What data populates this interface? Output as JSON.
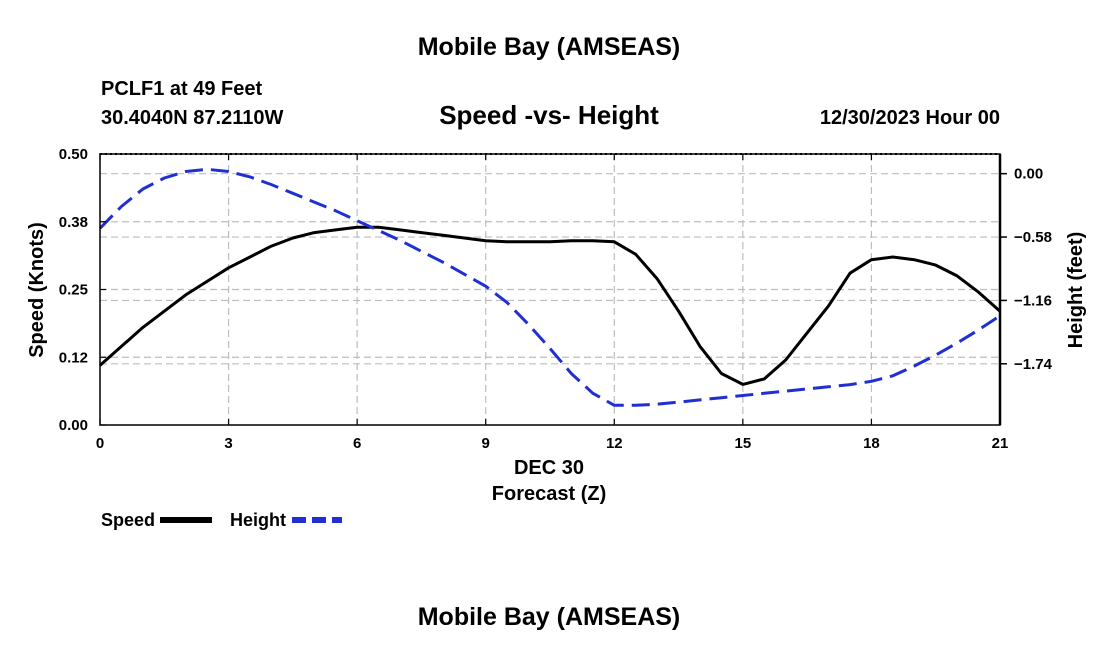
{
  "header": {
    "title": "Mobile Bay (AMSEAS)",
    "station": "PCLF1 at 49 Feet",
    "coords": "30.4040N  87.2110W",
    "datetime": "12/30/2023 Hour 00",
    "footer_title": "Mobile Bay (AMSEAS)"
  },
  "chart_data": {
    "type": "line",
    "title": "Speed -vs- Height",
    "xlabel": "Forecast (Z)",
    "xdate_label": "DEC 30",
    "ylabel": "Speed (Knots)",
    "y2label": "Height (feet)",
    "xlim": [
      0,
      21
    ],
    "ylim": [
      0,
      0.5
    ],
    "y2lim": [
      -2.3,
      0.18
    ],
    "xticks": [
      0,
      3,
      6,
      9,
      12,
      15,
      18,
      21
    ],
    "xtick_labels": [
      "0",
      "3",
      "6",
      "9",
      "12",
      "15",
      "18",
      "21"
    ],
    "yticks": [
      0,
      0.125,
      0.25,
      0.375,
      0.5
    ],
    "ytick_labels": [
      "0.00",
      "0.12",
      "0.25",
      "0.38",
      "0.50"
    ],
    "y2ticks": [
      0,
      -0.58,
      -1.16,
      -1.74
    ],
    "y2tick_labels": [
      "0.00",
      "−0.58",
      "−1.16",
      "−1.74"
    ],
    "grid": true,
    "series": [
      {
        "name": "Speed",
        "axis": "left",
        "color": "#000000",
        "style": "solid",
        "x": [
          0,
          0.5,
          1,
          1.5,
          2,
          2.5,
          3,
          3.5,
          4,
          4.5,
          5,
          5.5,
          6,
          6.5,
          7,
          7.5,
          8,
          8.5,
          9,
          9.5,
          10,
          10.5,
          11,
          11.5,
          12,
          12.5,
          13,
          13.5,
          14,
          14.5,
          15,
          15.5,
          16,
          16.5,
          17,
          17.5,
          18,
          18.5,
          19,
          19.5,
          20,
          20.5,
          21
        ],
        "values": [
          0.11,
          0.145,
          0.18,
          0.21,
          0.24,
          0.265,
          0.29,
          0.31,
          0.33,
          0.345,
          0.355,
          0.36,
          0.365,
          0.365,
          0.36,
          0.355,
          0.35,
          0.345,
          0.34,
          0.338,
          0.338,
          0.338,
          0.34,
          0.34,
          0.338,
          0.315,
          0.27,
          0.21,
          0.145,
          0.095,
          0.075,
          0.085,
          0.12,
          0.17,
          0.22,
          0.28,
          0.305,
          0.31,
          0.305,
          0.295,
          0.275,
          0.245,
          0.21
        ]
      },
      {
        "name": "Height",
        "axis": "right",
        "color": "#1f2fd2",
        "style": "dashed",
        "x": [
          0,
          0.5,
          1,
          1.5,
          2,
          2.5,
          3,
          3.5,
          4,
          4.5,
          5,
          5.5,
          6,
          6.5,
          7,
          7.5,
          8,
          8.5,
          9,
          9.5,
          10,
          10.5,
          11,
          11.5,
          12,
          12.5,
          13,
          13.5,
          14,
          14.5,
          15,
          15.5,
          16,
          16.5,
          17,
          17.5,
          18,
          18.5,
          19,
          19.5,
          20,
          20.5,
          21
        ],
        "values": [
          -0.5,
          -0.3,
          -0.14,
          -0.04,
          0.02,
          0.04,
          0.02,
          -0.03,
          -0.1,
          -0.18,
          -0.26,
          -0.34,
          -0.43,
          -0.52,
          -0.61,
          -0.71,
          -0.81,
          -0.92,
          -1.03,
          -1.18,
          -1.38,
          -1.6,
          -1.83,
          -2.01,
          -2.12,
          -2.12,
          -2.11,
          -2.09,
          -2.07,
          -2.05,
          -2.03,
          -2.01,
          -1.99,
          -1.97,
          -1.95,
          -1.93,
          -1.9,
          -1.85,
          -1.76,
          -1.66,
          -1.55,
          -1.43,
          -1.3
        ]
      }
    ],
    "legend": {
      "position": "bottom-left",
      "entries": [
        "Speed",
        "Height"
      ]
    }
  }
}
